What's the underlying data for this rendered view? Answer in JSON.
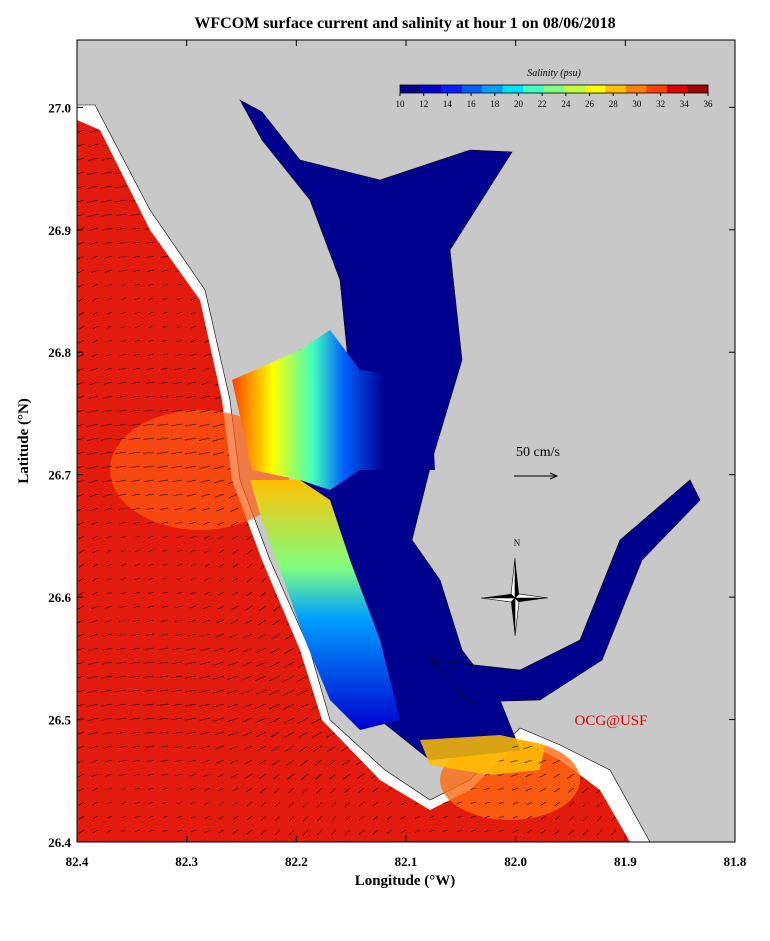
{
  "map": {
    "title": "WFCOM surface current and salinity at hour 1 on 08/06/2018",
    "x_axis_label": "Longitude (°W)",
    "y_axis_label": "Latitude (°N)",
    "xlim": [
      82.4,
      81.8
    ],
    "ylim": [
      26.4,
      27.055
    ],
    "xticks": [
      82.4,
      82.3,
      82.2,
      82.1,
      {
        "value": 82,
        "label": "82.0"
      },
      81.9,
      81.8
    ],
    "yticks": [
      26.4,
      26.5,
      26.6,
      26.7,
      26.8,
      26.9,
      {
        "value": 27,
        "label": "27.0"
      }
    ],
    "colorbar": {
      "title": "Salinity (psu)",
      "lim": [
        10,
        36
      ],
      "ticks": [
        10,
        12,
        14,
        16,
        18,
        20,
        22,
        24,
        26,
        28,
        30,
        32,
        34,
        36
      ],
      "colors": [
        "#00008f",
        "#0000d0",
        "#0020ff",
        "#0060ff",
        "#00a0ff",
        "#00e0ff",
        "#40ffc0",
        "#80ff80",
        "#c0ff40",
        "#ffff00",
        "#ffc000",
        "#ff8000",
        "#ff4000",
        "#e00000",
        "#a00000"
      ]
    },
    "scale_label": "50 cm/s",
    "compass_label": "N",
    "credit": "OCG@USF"
  }
}
